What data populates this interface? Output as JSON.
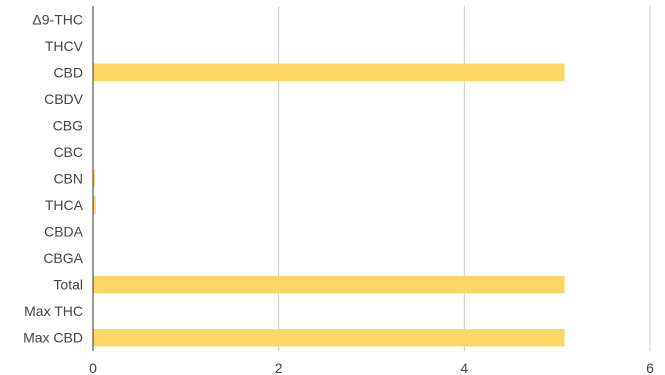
{
  "chart_data": {
    "type": "bar",
    "orientation": "horizontal",
    "categories": [
      "Δ9-THC",
      "THCV",
      "CBD",
      "CBDV",
      "CBG",
      "CBC",
      "CBN",
      "THCA",
      "CBDA",
      "CBGA",
      "Total",
      "Max THC",
      "Max CBD"
    ],
    "values": [
      0,
      0,
      5.08,
      0,
      0,
      0,
      0.02,
      0.03,
      0,
      0,
      5.08,
      0,
      5.08
    ],
    "xlim": [
      0,
      6
    ],
    "x_ticks": [
      "0",
      "2",
      "4",
      "6"
    ],
    "grid": true,
    "legend": "none",
    "bar_color": "#fdd663",
    "title": "",
    "xlabel": "",
    "ylabel": ""
  }
}
